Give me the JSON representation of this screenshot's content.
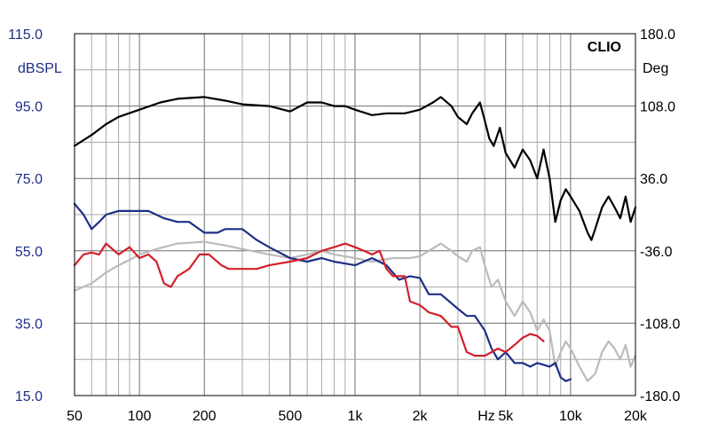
{
  "chart_data": {
    "type": "line",
    "brand": "CLIO",
    "xscale": "log",
    "xlim": [
      50,
      20000
    ],
    "x_major_ticks": [
      {
        "value": 50,
        "label": "50"
      },
      {
        "value": 100,
        "label": "100"
      },
      {
        "value": 200,
        "label": "200"
      },
      {
        "value": 500,
        "label": "500"
      },
      {
        "value": 1000,
        "label": "1k"
      },
      {
        "value": 2000,
        "label": "2k"
      },
      {
        "value": 5000,
        "label": "5k"
      },
      {
        "value": 10000,
        "label": "10k"
      },
      {
        "value": 20000,
        "label": "20k"
      }
    ],
    "x_unit": "Hz",
    "left_axis": {
      "label": "dBSPL",
      "color": "#1e2f86",
      "range": [
        15,
        115
      ],
      "ticks": [
        "15.0",
        "35.0",
        "55.0",
        "75.0",
        "95.0",
        "115.0"
      ]
    },
    "right_axis": {
      "label": "Deg",
      "range": [
        -180,
        180
      ],
      "ticks": [
        "-180.0",
        "-108.0",
        "-36.0",
        "36.0",
        "108.0",
        "180.0"
      ]
    },
    "grid": true,
    "series": [
      {
        "color": "#000000",
        "axis": "left",
        "points": [
          [
            50,
            84
          ],
          [
            60,
            87
          ],
          [
            70,
            90
          ],
          [
            80,
            92
          ],
          [
            100,
            94
          ],
          [
            125,
            96
          ],
          [
            150,
            97
          ],
          [
            200,
            97.5
          ],
          [
            250,
            96.5
          ],
          [
            300,
            95.5
          ],
          [
            400,
            95
          ],
          [
            500,
            93.5
          ],
          [
            600,
            96
          ],
          [
            700,
            96
          ],
          [
            800,
            95
          ],
          [
            900,
            95
          ],
          [
            1000,
            94
          ],
          [
            1200,
            92.5
          ],
          [
            1400,
            93
          ],
          [
            1700,
            93
          ],
          [
            2000,
            94
          ],
          [
            2300,
            96
          ],
          [
            2500,
            97.5
          ],
          [
            2800,
            95
          ],
          [
            3000,
            92
          ],
          [
            3300,
            90
          ],
          [
            3500,
            93
          ],
          [
            3800,
            96
          ],
          [
            4000,
            91
          ],
          [
            4200,
            86
          ],
          [
            4400,
            84
          ],
          [
            4700,
            89
          ],
          [
            5000,
            82
          ],
          [
            5500,
            78
          ],
          [
            6000,
            83
          ],
          [
            6500,
            80
          ],
          [
            7000,
            75
          ],
          [
            7500,
            83
          ],
          [
            8000,
            75
          ],
          [
            8500,
            63
          ],
          [
            9000,
            69
          ],
          [
            9500,
            72
          ],
          [
            10000,
            70
          ],
          [
            11000,
            66
          ],
          [
            12000,
            60
          ],
          [
            12500,
            58
          ],
          [
            13000,
            61
          ],
          [
            14000,
            67
          ],
          [
            15000,
            70
          ],
          [
            16000,
            67
          ],
          [
            17000,
            64
          ],
          [
            18000,
            70
          ],
          [
            19000,
            63
          ],
          [
            20000,
            67
          ]
        ]
      },
      {
        "color": "#1e2f86",
        "axis": "left",
        "points": [
          [
            50,
            68
          ],
          [
            55,
            65
          ],
          [
            60,
            61
          ],
          [
            65,
            63
          ],
          [
            70,
            65
          ],
          [
            80,
            66
          ],
          [
            100,
            66
          ],
          [
            110,
            66
          ],
          [
            130,
            64
          ],
          [
            150,
            63
          ],
          [
            170,
            63
          ],
          [
            200,
            60
          ],
          [
            230,
            60
          ],
          [
            250,
            61
          ],
          [
            300,
            61
          ],
          [
            350,
            58
          ],
          [
            400,
            56
          ],
          [
            500,
            53
          ],
          [
            600,
            52
          ],
          [
            700,
            53
          ],
          [
            800,
            52
          ],
          [
            1000,
            51
          ],
          [
            1200,
            53
          ],
          [
            1400,
            51
          ],
          [
            1600,
            47
          ],
          [
            1800,
            48
          ],
          [
            2000,
            47.5
          ],
          [
            2200,
            43
          ],
          [
            2500,
            43
          ],
          [
            3000,
            39
          ],
          [
            3300,
            37
          ],
          [
            3600,
            37
          ],
          [
            4000,
            33
          ],
          [
            4300,
            28
          ],
          [
            4600,
            25
          ],
          [
            5000,
            27
          ],
          [
            5500,
            24
          ],
          [
            6000,
            24
          ],
          [
            6500,
            23
          ],
          [
            7000,
            24
          ],
          [
            7500,
            23.5
          ],
          [
            8000,
            23
          ],
          [
            8500,
            24
          ],
          [
            9000,
            20
          ],
          [
            9500,
            19
          ],
          [
            10000,
            19.5
          ]
        ]
      },
      {
        "color": "#d2212b",
        "axis": "left",
        "points": [
          [
            50,
            51
          ],
          [
            55,
            54
          ],
          [
            60,
            54.5
          ],
          [
            65,
            54
          ],
          [
            70,
            57
          ],
          [
            80,
            54
          ],
          [
            90,
            56
          ],
          [
            100,
            53
          ],
          [
            110,
            54
          ],
          [
            120,
            52
          ],
          [
            130,
            46
          ],
          [
            140,
            45
          ],
          [
            150,
            48
          ],
          [
            170,
            50
          ],
          [
            190,
            54
          ],
          [
            210,
            54
          ],
          [
            240,
            51
          ],
          [
            260,
            50
          ],
          [
            300,
            50
          ],
          [
            350,
            50
          ],
          [
            400,
            51
          ],
          [
            500,
            52
          ],
          [
            600,
            53
          ],
          [
            700,
            55
          ],
          [
            800,
            56
          ],
          [
            900,
            57
          ],
          [
            1000,
            56
          ],
          [
            1100,
            55
          ],
          [
            1200,
            54
          ],
          [
            1300,
            55
          ],
          [
            1400,
            50
          ],
          [
            1500,
            48
          ],
          [
            1600,
            48
          ],
          [
            1700,
            48
          ],
          [
            1800,
            41
          ],
          [
            2000,
            40
          ],
          [
            2200,
            38
          ],
          [
            2500,
            37
          ],
          [
            2800,
            34
          ],
          [
            3000,
            34
          ],
          [
            3300,
            27
          ],
          [
            3600,
            26
          ],
          [
            4000,
            26
          ],
          [
            4300,
            27
          ],
          [
            4600,
            28
          ],
          [
            5000,
            27
          ],
          [
            5500,
            29
          ],
          [
            6000,
            31
          ],
          [
            6500,
            32
          ],
          [
            7000,
            31.5
          ],
          [
            7500,
            30
          ]
        ]
      },
      {
        "color": "#bbbbbb",
        "axis": "left",
        "points": [
          [
            50,
            44
          ],
          [
            60,
            46
          ],
          [
            70,
            49
          ],
          [
            80,
            51
          ],
          [
            90,
            52.5
          ],
          [
            100,
            54
          ],
          [
            120,
            55.5
          ],
          [
            150,
            57
          ],
          [
            200,
            57.5
          ],
          [
            250,
            56.5
          ],
          [
            300,
            55.5
          ],
          [
            400,
            54
          ],
          [
            500,
            53
          ],
          [
            600,
            54
          ],
          [
            700,
            55
          ],
          [
            800,
            54
          ],
          [
            1000,
            53
          ],
          [
            1200,
            52
          ],
          [
            1500,
            53
          ],
          [
            1800,
            53
          ],
          [
            2000,
            53.5
          ],
          [
            2200,
            55
          ],
          [
            2500,
            57
          ],
          [
            2800,
            55
          ],
          [
            3000,
            53.5
          ],
          [
            3300,
            52
          ],
          [
            3500,
            55
          ],
          [
            3800,
            56
          ],
          [
            4000,
            51
          ],
          [
            4300,
            45
          ],
          [
            4600,
            47
          ],
          [
            5000,
            41
          ],
          [
            5500,
            37
          ],
          [
            6000,
            41
          ],
          [
            6500,
            38
          ],
          [
            7000,
            33
          ],
          [
            7500,
            36
          ],
          [
            8000,
            33
          ],
          [
            8500,
            23
          ],
          [
            9000,
            27
          ],
          [
            9500,
            30
          ],
          [
            10000,
            28
          ],
          [
            11000,
            23
          ],
          [
            12000,
            19
          ],
          [
            13000,
            21
          ],
          [
            14000,
            27
          ],
          [
            15000,
            30
          ],
          [
            16000,
            28
          ],
          [
            17000,
            25
          ],
          [
            18000,
            29
          ],
          [
            19000,
            23
          ],
          [
            20000,
            26
          ]
        ]
      }
    ]
  }
}
